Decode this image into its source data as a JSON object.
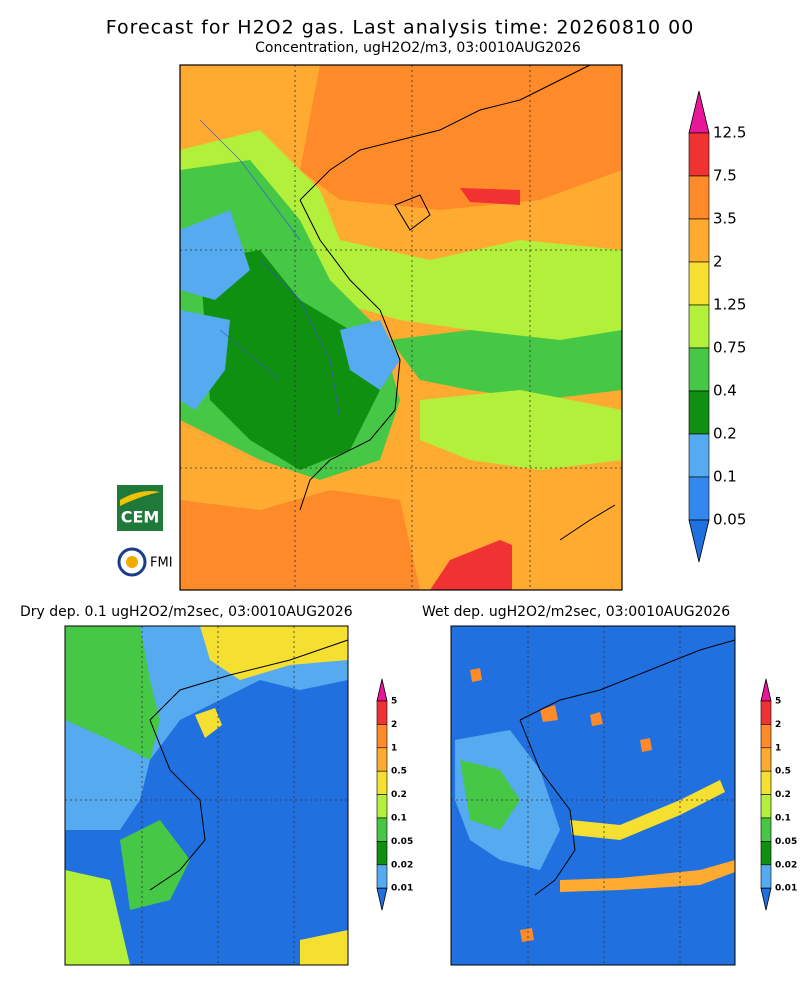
{
  "header": {
    "title": "Forecast for H2O2 gas. Last analysis time: 20260810 00",
    "subtitle": "Concentration, ugH2O2/m3, 03:0010AUG2026"
  },
  "main_map": {
    "colorbar": {
      "labels": [
        "12.5",
        "7.5",
        "3.5",
        "2",
        "1.25",
        "0.75",
        "0.4",
        "0.2",
        "0.1",
        "0.05"
      ],
      "colors": [
        "#e8179a",
        "#f03232",
        "#ff8a2a",
        "#ffab32",
        "#f5e032",
        "#b2f03c",
        "#46c846",
        "#0f9010",
        "#55aaf0",
        "#3388f0",
        "#2070e0"
      ]
    }
  },
  "dry_map": {
    "title": "Dry dep. 0.1 ugH2O2/m2sec, 03:0010AUG2026",
    "colorbar": {
      "labels": [
        "5",
        "2",
        "1",
        "0.5",
        "0.2",
        "0.1",
        "0.05",
        "0.02",
        "0.01"
      ],
      "colors": [
        "#e8179a",
        "#f03232",
        "#ff8a2a",
        "#ffab32",
        "#f5e032",
        "#b2f03c",
        "#46c846",
        "#0f9010",
        "#55aaf0",
        "#2070e0"
      ]
    }
  },
  "wet_map": {
    "title": "Wet dep. ugH2O2/m2sec, 03:0010AUG2026",
    "colorbar": {
      "labels": [
        "5",
        "2",
        "1",
        "0.5",
        "0.2",
        "0.1",
        "0.05",
        "0.02",
        "0.01"
      ],
      "colors": [
        "#e8179a",
        "#f03232",
        "#ff8a2a",
        "#ffab32",
        "#f5e032",
        "#b2f03c",
        "#46c846",
        "#0f9010",
        "#55aaf0",
        "#2070e0"
      ]
    }
  },
  "logos": {
    "cem": "CEM",
    "fmi": "FMI"
  }
}
